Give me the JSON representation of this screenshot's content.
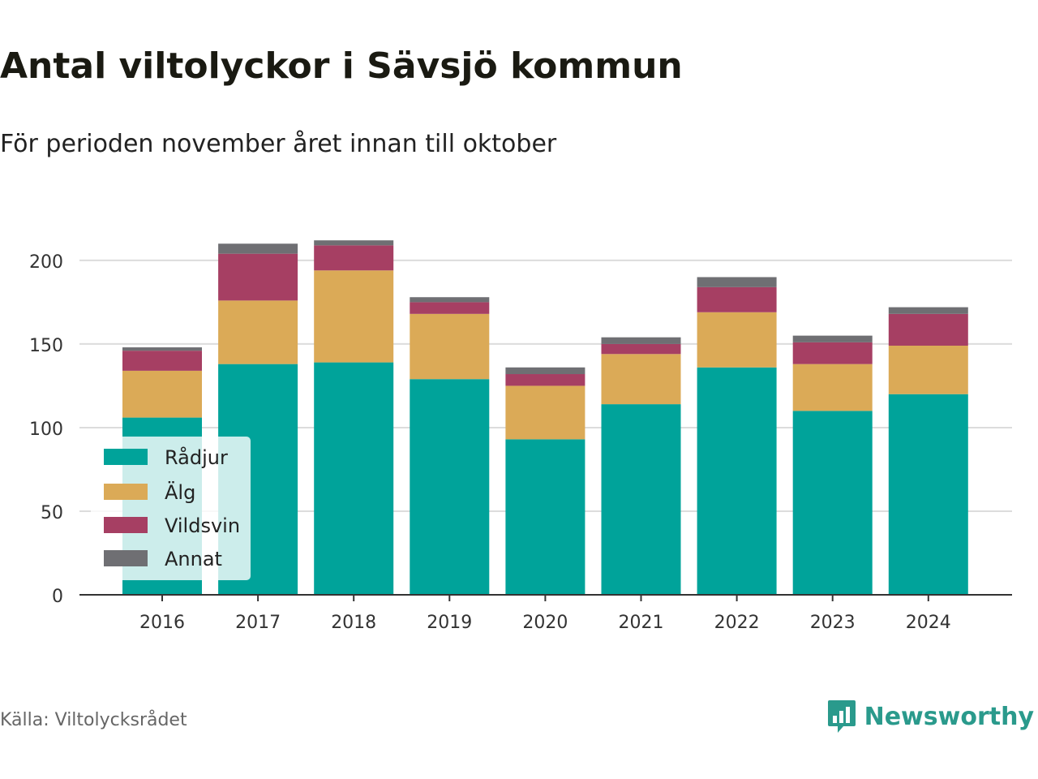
{
  "title": "Antal viltolyckor i Sävsjö kommun",
  "subtitle": "För perioden november året innan till oktober",
  "source": "Källa: Viltolycksrådet",
  "brand": {
    "name": "Newsworthy",
    "icon": "bar-chart-speech-icon",
    "color": "#2a9a8c"
  },
  "chart_data": {
    "type": "bar",
    "stacked": true,
    "categories": [
      "2016",
      "2017",
      "2018",
      "2019",
      "2020",
      "2021",
      "2022",
      "2023",
      "2024"
    ],
    "series": [
      {
        "name": "Rådjur",
        "color": "#00a39a",
        "values": [
          106,
          138,
          139,
          129,
          93,
          114,
          136,
          110,
          120
        ]
      },
      {
        "name": "Älg",
        "color": "#dbaa57",
        "values": [
          28,
          38,
          55,
          39,
          32,
          30,
          33,
          28,
          29
        ]
      },
      {
        "name": "Vildsvin",
        "color": "#a63f63",
        "values": [
          12,
          28,
          15,
          7,
          7,
          6,
          15,
          13,
          19
        ]
      },
      {
        "name": "Annat",
        "color": "#6f6f73",
        "values": [
          2,
          6,
          3,
          3,
          4,
          4,
          6,
          4,
          4
        ]
      }
    ],
    "yticks": [
      0,
      50,
      100,
      150,
      200
    ],
    "ylim": [
      0,
      215
    ],
    "grid": true,
    "legend_position": "bottom-left"
  }
}
